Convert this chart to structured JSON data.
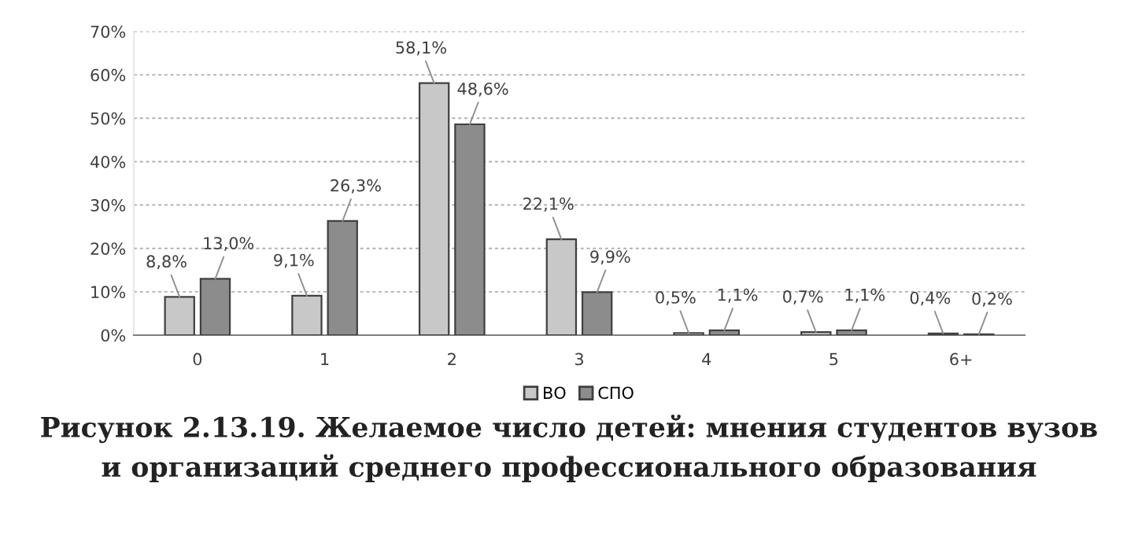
{
  "chart_data": {
    "type": "bar",
    "title": "Рисунок 2.13.19. Желаемое число детей: мнения студентов вузов\nи организаций среднего профессионального образования",
    "categories": [
      "0",
      "1",
      "2",
      "3",
      "4",
      "5",
      "6+"
    ],
    "series": [
      {
        "name": "ВО",
        "color": "#c8c8c8",
        "values": [
          8.8,
          9.1,
          58.1,
          22.1,
          0.5,
          0.7,
          0.4
        ],
        "value_labels": [
          "8,8%",
          "9,1%",
          "58,1%",
          "22,1%",
          "0,5%",
          "0,7%",
          "0,4%"
        ]
      },
      {
        "name": "СПО",
        "color": "#8c8c8c",
        "values": [
          13.0,
          26.3,
          48.6,
          9.9,
          1.1,
          1.1,
          0.2
        ],
        "value_labels": [
          "13,0%",
          "26,3%",
          "48,6%",
          "9,9%",
          "1,1%",
          "1,1%",
          "0,2%"
        ]
      }
    ],
    "ylim": [
      0,
      70
    ],
    "yticks": [
      {
        "value": 0,
        "label": "0%"
      },
      {
        "value": 10,
        "label": "10%"
      },
      {
        "value": 20,
        "label": "20%"
      },
      {
        "value": 30,
        "label": "30%"
      },
      {
        "value": 40,
        "label": "40%"
      },
      {
        "value": 50,
        "label": "50%"
      },
      {
        "value": 60,
        "label": "60%"
      },
      {
        "value": 70,
        "label": "70%"
      }
    ],
    "grid": "y",
    "legend": "bottom"
  }
}
